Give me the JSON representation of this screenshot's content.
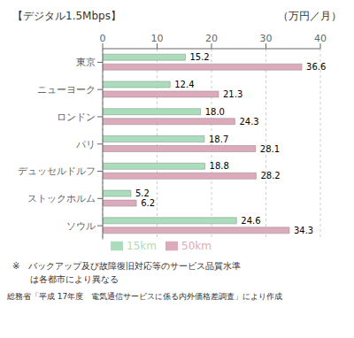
{
  "chart_data": {
    "type": "bar",
    "orientation": "horizontal",
    "title": "【デジタル1.5Mbps】",
    "xlabel": "（万円／月）",
    "categories": [
      "東京",
      "ニューヨーク",
      "ロンドン",
      "パリ",
      "デュッセルドルフ",
      "ストックホルム",
      "ソウル"
    ],
    "series": [
      {
        "name": "15km",
        "color": "#aaddbb",
        "values": [
          15.2,
          12.4,
          18.0,
          18.7,
          18.8,
          5.2,
          24.6
        ],
        "value_labels": [
          "15.2",
          "12.4",
          "18.0",
          "18.7",
          "18.8",
          "5.2",
          "24.6"
        ]
      },
      {
        "name": "50km",
        "color": "#ddaabb",
        "values": [
          36.6,
          21.3,
          24.3,
          28.1,
          28.2,
          6.2,
          34.3
        ],
        "value_labels": [
          "36.6",
          "21.3",
          "24.3",
          "28.1",
          "28.2",
          "6.2",
          "34.3"
        ]
      }
    ],
    "xlim": [
      0,
      40
    ],
    "xticks": [
      0,
      10,
      20,
      30,
      40
    ],
    "grid": true,
    "legend": "bottom",
    "data_labels": true,
    "annotations": [
      "※　バックアップ及び故障復旧対応等のサービス品質水準",
      "　　は各都市により異なる",
      "総務省「平成 17年度　電気通信サービスに係る内外価格差調査」により作成"
    ]
  }
}
